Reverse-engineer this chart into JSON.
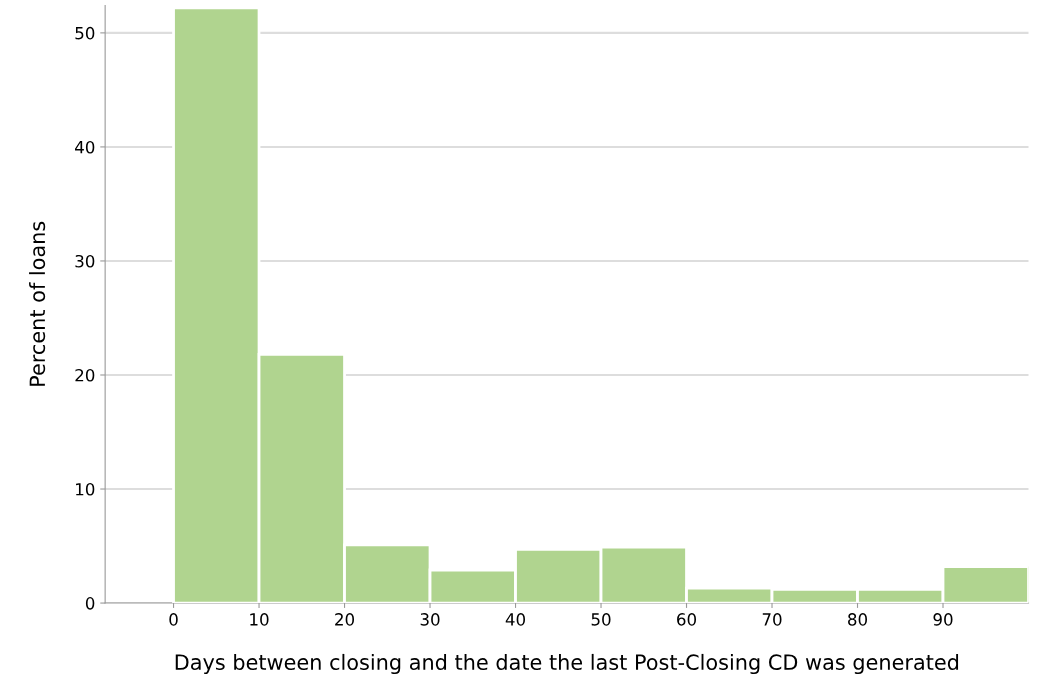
{
  "chart_data": {
    "type": "histogram",
    "xlabel": "Days between closing and the date the last Post-Closing CD was generated",
    "ylabel": "Percent of loans",
    "bins": [
      0,
      10,
      20,
      30,
      40,
      50,
      60,
      70,
      80,
      90,
      100
    ],
    "values": [
      52.2,
      21.8,
      5.1,
      2.9,
      4.7,
      4.9,
      1.3,
      1.2,
      1.2,
      3.2
    ],
    "color": "#b0d48f",
    "xlim": [
      -8,
      100
    ],
    "xticks": [
      0,
      10,
      20,
      30,
      40,
      50,
      60,
      70,
      80,
      90
    ],
    "ylim": [
      0,
      52.4
    ],
    "yticks": [
      0,
      10,
      20,
      30,
      40,
      50
    ],
    "grid": "y"
  }
}
